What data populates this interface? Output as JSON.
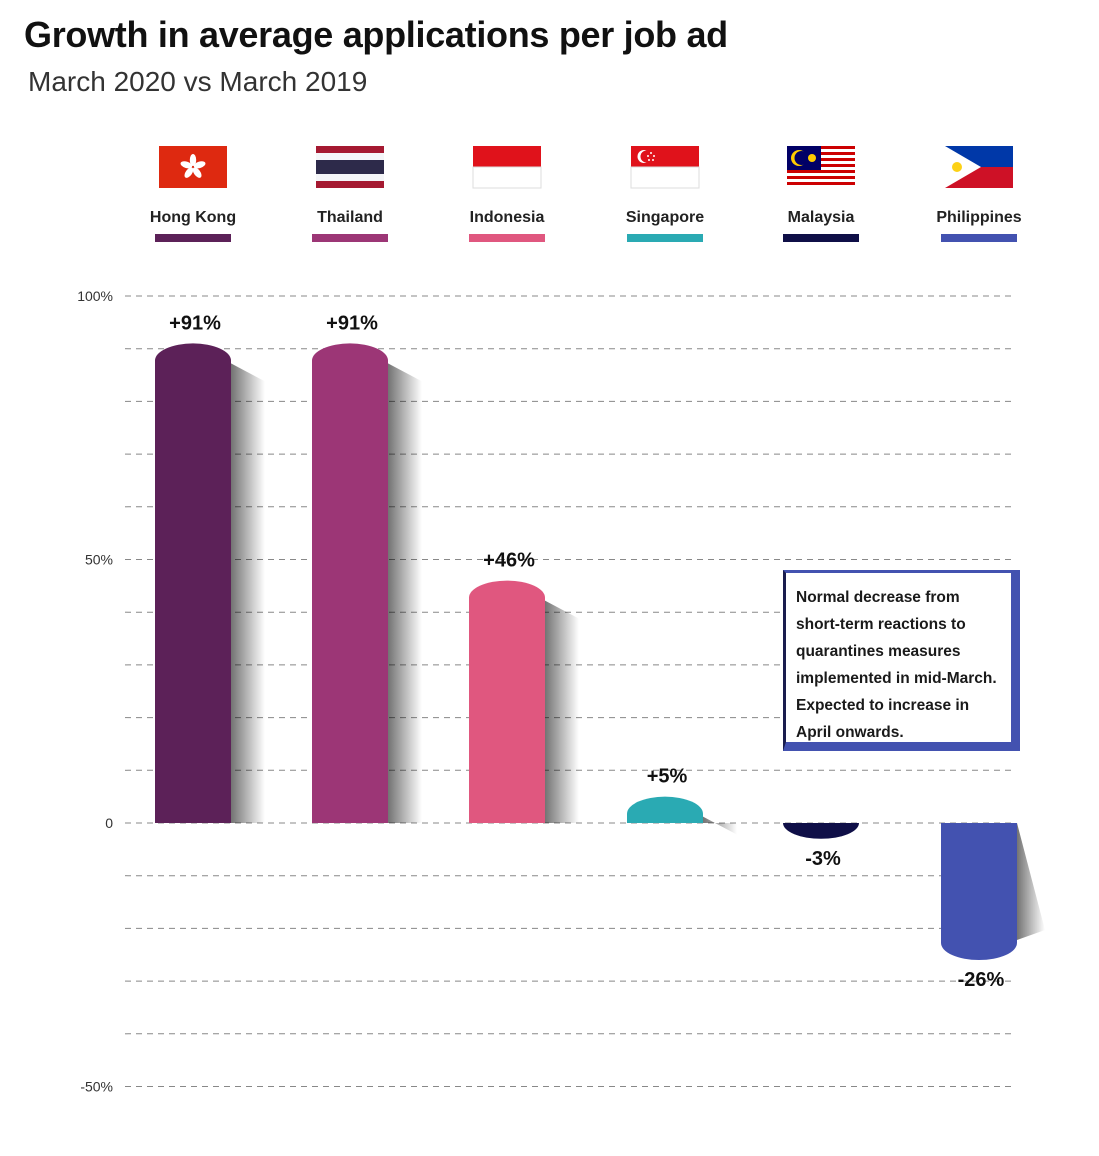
{
  "title": "Growth in average applications per job ad",
  "subtitle": "March 2020 vs March 2019",
  "note": "Normal decrease from short-term reactions to quarantines measures implemented in mid-March. Expected to increase in April onwards.",
  "colors": {
    "hong_kong": "#5c2158",
    "thailand": "#9c3676",
    "indonesia": "#e0577f",
    "singapore": "#2aaab3",
    "malaysia": "#0f0f47",
    "philippines": "#4352b0",
    "grid": "#888888"
  },
  "chart_data": {
    "type": "bar",
    "title": "Growth in average applications per job ad",
    "subtitle": "March 2020 vs March 2019",
    "categories": [
      "Hong Kong",
      "Thailand",
      "Indonesia",
      "Singapore",
      "Malaysia",
      "Philippines"
    ],
    "values": [
      91,
      91,
      46,
      5,
      -3,
      -26
    ],
    "value_labels": [
      "+91%",
      "+91%",
      "+46%",
      "+5%",
      "-3%",
      "-26%"
    ],
    "flags": [
      "hong-kong-flag",
      "thailand-flag",
      "indonesia-flag",
      "singapore-flag",
      "malaysia-flag",
      "philippines-flag"
    ],
    "ylim": [
      -50,
      100
    ],
    "yticks": [
      {
        "value": 100,
        "label": "100%"
      },
      {
        "value": 50,
        "label": "50%"
      },
      {
        "value": 0,
        "label": "0"
      },
      {
        "value": -50,
        "label": "-50%"
      }
    ],
    "grid": true,
    "grid_style": "dashed",
    "legend": "top"
  }
}
